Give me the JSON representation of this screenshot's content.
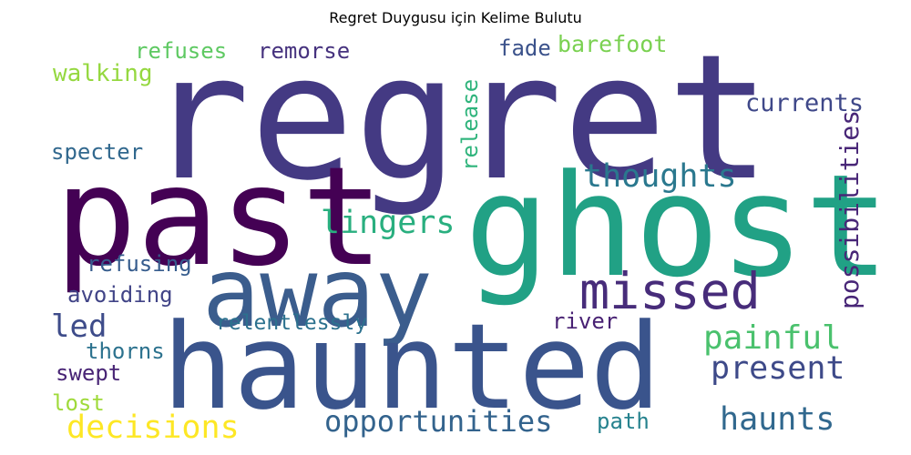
{
  "title": "Regret Duygusu için Kelime Bulutu",
  "words": [
    {
      "text": "regret",
      "color": "#443a83"
    },
    {
      "text": "past",
      "color": "#440154"
    },
    {
      "text": "ghost",
      "color": "#21a185"
    },
    {
      "text": "away",
      "color": "#3b5d8d"
    },
    {
      "text": "haunted",
      "color": "#3a548c"
    },
    {
      "text": "missed",
      "color": "#472c7a"
    },
    {
      "text": "thoughts",
      "color": "#2a788e"
    },
    {
      "text": "lingers",
      "color": "#29af7f"
    },
    {
      "text": "opportunities",
      "color": "#33638d"
    },
    {
      "text": "decisions",
      "color": "#fde725"
    },
    {
      "text": "present",
      "color": "#3e4a89"
    },
    {
      "text": "haunts",
      "color": "#31688e"
    },
    {
      "text": "painful",
      "color": "#4ac16d"
    },
    {
      "text": "possibilities",
      "color": "#482677"
    },
    {
      "text": "currents",
      "color": "#3f4889"
    },
    {
      "text": "release",
      "color": "#2fb47c"
    },
    {
      "text": "relentlessly",
      "color": "#2c718e"
    },
    {
      "text": "refusing",
      "color": "#365c8d"
    },
    {
      "text": "avoiding",
      "color": "#414487"
    },
    {
      "text": "barefoot",
      "color": "#7ad151"
    },
    {
      "text": "walking",
      "color": "#95d840"
    },
    {
      "text": "refuses",
      "color": "#5ec962"
    },
    {
      "text": "remorse",
      "color": "#46327e"
    },
    {
      "text": "specter",
      "color": "#31688e"
    },
    {
      "text": "fade",
      "color": "#3b528b"
    },
    {
      "text": "led",
      "color": "#3e4c8a"
    },
    {
      "text": "thorns",
      "color": "#2c728e"
    },
    {
      "text": "swept",
      "color": "#482475"
    },
    {
      "text": "lost",
      "color": "#9fda3a"
    },
    {
      "text": "river",
      "color": "#482173"
    },
    {
      "text": "path",
      "color": "#26828e"
    }
  ]
}
